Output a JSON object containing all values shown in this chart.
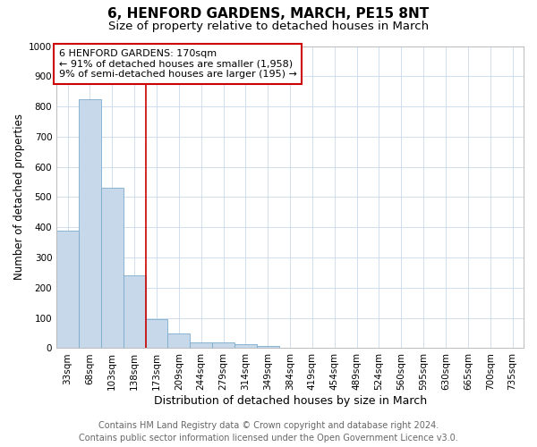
{
  "title": "6, HENFORD GARDENS, MARCH, PE15 8NT",
  "subtitle": "Size of property relative to detached houses in March",
  "xlabel": "Distribution of detached houses by size in March",
  "ylabel": "Number of detached properties",
  "bar_values": [
    390,
    825,
    530,
    242,
    97,
    50,
    20,
    18,
    13,
    8,
    0,
    0,
    0,
    0,
    0,
    0,
    0,
    0,
    0,
    0,
    0
  ],
  "categories": [
    "33sqm",
    "68sqm",
    "103sqm",
    "138sqm",
    "173sqm",
    "209sqm",
    "244sqm",
    "279sqm",
    "314sqm",
    "349sqm",
    "384sqm",
    "419sqm",
    "454sqm",
    "489sqm",
    "524sqm",
    "560sqm",
    "595sqm",
    "630sqm",
    "665sqm",
    "700sqm",
    "735sqm"
  ],
  "bar_color": "#c8d8eb",
  "bar_edge_color": "#7aabcc",
  "grid_color": "#c8d8eb",
  "vline_x_index": 3.5,
  "annotation_box_text": "6 HENFORD GARDENS: 170sqm\n← 91% of detached houses are smaller (1,958)\n9% of semi-detached houses are larger (195) →",
  "annotation_box_color": "#cc0000",
  "vline_color": "#cc0000",
  "ylim": [
    0,
    1000
  ],
  "yticks": [
    0,
    100,
    200,
    300,
    400,
    500,
    600,
    700,
    800,
    900,
    1000
  ],
  "footer_line1": "Contains HM Land Registry data © Crown copyright and database right 2024.",
  "footer_line2": "Contains public sector information licensed under the Open Government Licence v3.0.",
  "title_fontsize": 11,
  "subtitle_fontsize": 9.5,
  "xlabel_fontsize": 9,
  "ylabel_fontsize": 8.5,
  "tick_fontsize": 7.5,
  "annotation_fontsize": 8,
  "footer_fontsize": 7
}
